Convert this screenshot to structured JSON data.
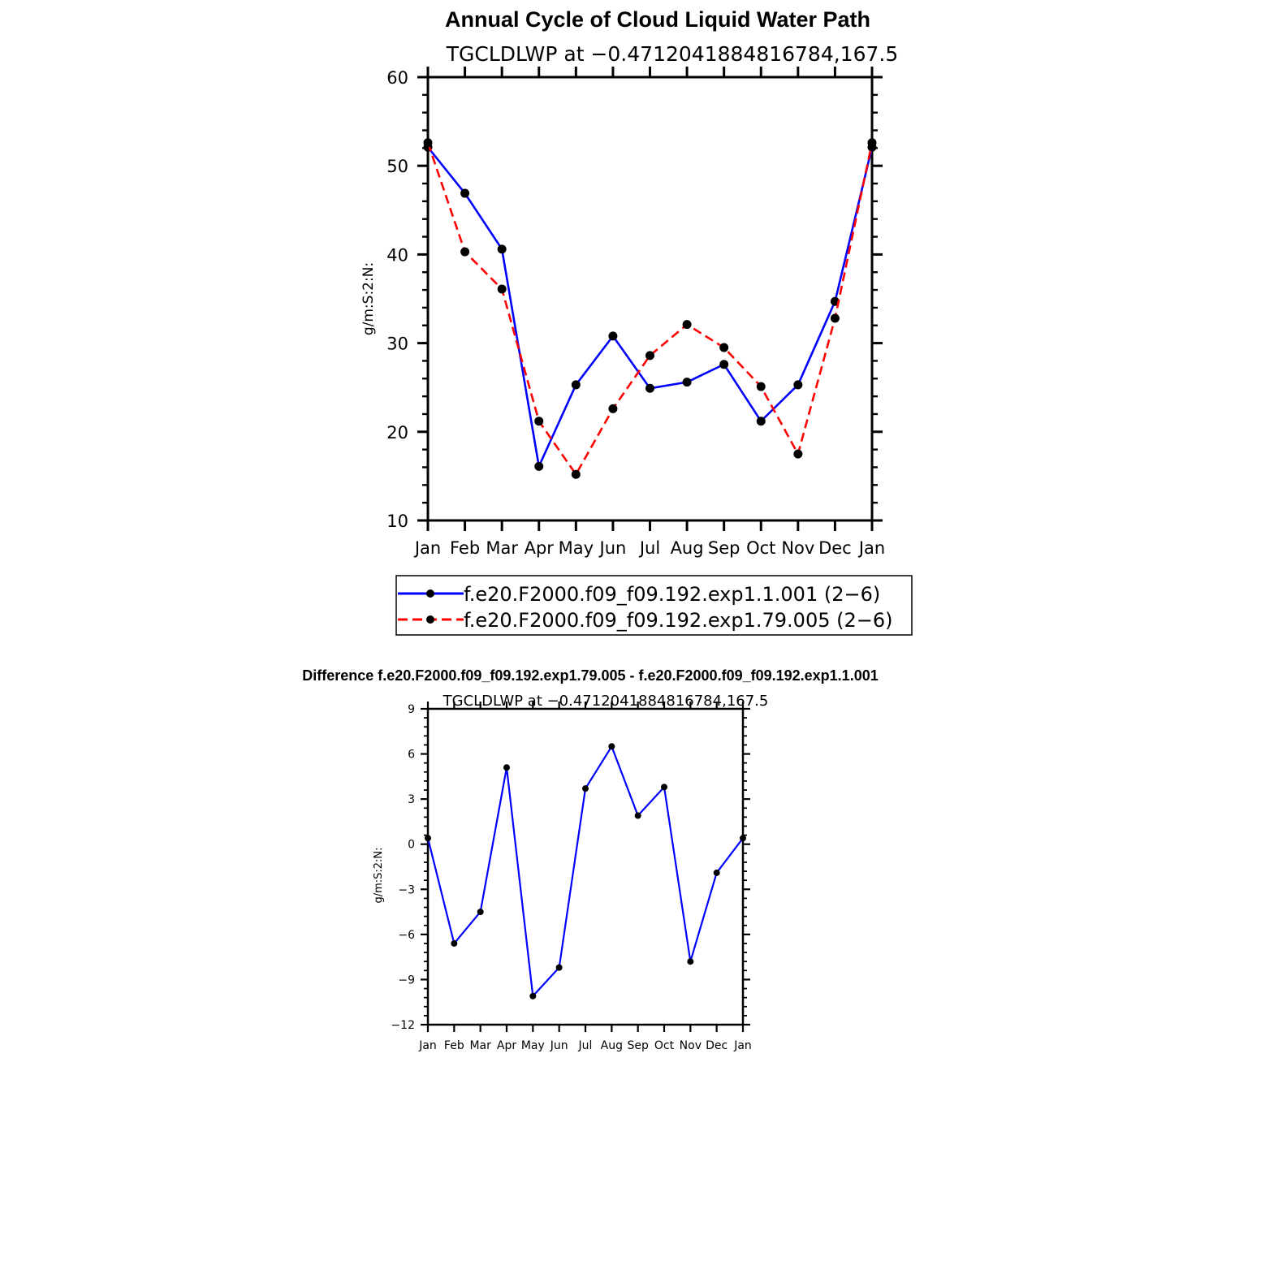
{
  "chart_data": [
    {
      "type": "line",
      "title": "Annual Cycle of Cloud Liquid Water Path",
      "subtitle": "TGCLDLWP at −0.4712041884816784,167.5",
      "ylabel": "g/m:S:2:N:",
      "xlabel": "",
      "categories": [
        "Jan",
        "Feb",
        "Mar",
        "Apr",
        "May",
        "Jun",
        "Jul",
        "Aug",
        "Sep",
        "Oct",
        "Nov",
        "Dec",
        "Jan"
      ],
      "ylim": [
        10,
        60
      ],
      "yticks": [
        10,
        20,
        30,
        40,
        50,
        60
      ],
      "legend_position": "bottom",
      "series": [
        {
          "name": "f.e20.F2000.f09_f09.192.exp1.1.001 (2−6)",
          "color": "#0000ff",
          "style": "solid",
          "values": [
            52.1,
            46.9,
            40.6,
            16.1,
            25.3,
            30.8,
            24.9,
            25.6,
            27.6,
            21.2,
            25.3,
            34.7,
            52.1
          ]
        },
        {
          "name": "f.e20.F2000.f09_f09.192.exp1.79.005 (2−6)",
          "color": "#ff0000",
          "style": "dashed",
          "values": [
            52.6,
            40.3,
            36.1,
            21.2,
            15.2,
            22.6,
            28.6,
            32.1,
            29.5,
            25.1,
            17.5,
            32.8,
            52.6
          ]
        }
      ]
    },
    {
      "type": "line",
      "title": "Difference f.e20.F2000.f09_f09.192.exp1.79.005 - f.e20.F2000.f09_f09.192.exp1.1.001",
      "subtitle": "TGCLDLWP at −0.4712041884816784,167.5",
      "ylabel": "g/m:S:2:N:",
      "xlabel": "",
      "categories": [
        "Jan",
        "Feb",
        "Mar",
        "Apr",
        "May",
        "Jun",
        "Jul",
        "Aug",
        "Sep",
        "Oct",
        "Nov",
        "Dec",
        "Jan"
      ],
      "ylim": [
        -12,
        9
      ],
      "yticks": [
        -12,
        -9,
        -6,
        -3,
        0,
        3,
        6,
        9
      ],
      "ytick_labels": [
        "−12",
        "−9",
        "−6",
        "−3",
        "0",
        "3",
        "6",
        "9"
      ],
      "series": [
        {
          "name": "",
          "color": "#0000ff",
          "style": "solid",
          "values": [
            0.4,
            -6.6,
            -4.5,
            5.1,
            -10.1,
            -8.2,
            3.7,
            6.5,
            1.9,
            3.8,
            -7.8,
            -1.9,
            0.4
          ]
        }
      ]
    }
  ]
}
